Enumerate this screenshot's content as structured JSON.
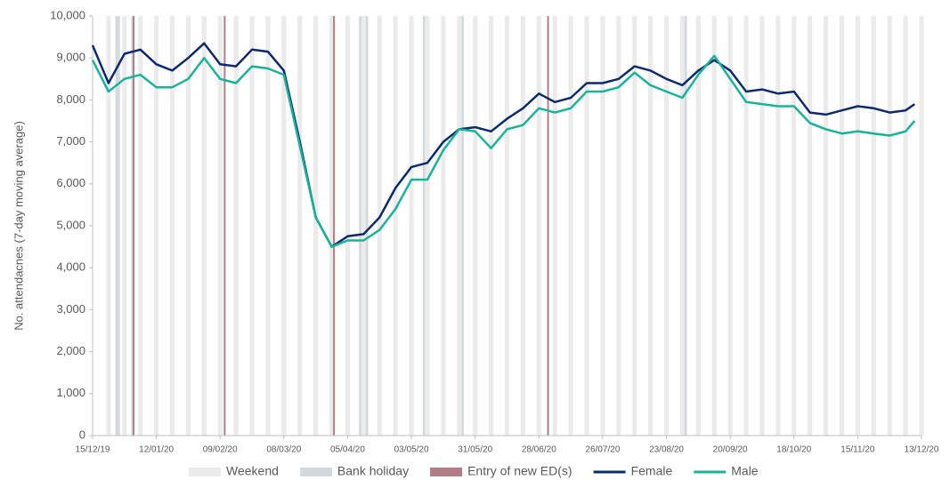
{
  "chart_data": {
    "type": "line",
    "y_label": "No. attendacnes (7-day moving average)",
    "x": [
      "15/12/19",
      "22/12/19",
      "29/12/19",
      "05/01/20",
      "12/01/20",
      "19/01/20",
      "26/01/20",
      "02/02/20",
      "09/02/20",
      "16/02/20",
      "23/02/20",
      "01/03/20",
      "08/03/20",
      "15/03/20",
      "22/03/20",
      "29/03/20",
      "05/04/20",
      "12/04/20",
      "19/04/20",
      "26/04/20",
      "03/05/20",
      "10/05/20",
      "17/05/20",
      "24/05/20",
      "31/05/20",
      "07/06/20",
      "14/06/20",
      "21/06/20",
      "28/06/20",
      "05/07/20",
      "12/07/20",
      "19/07/20",
      "26/07/20",
      "02/08/20",
      "09/08/20",
      "16/08/20",
      "23/08/20",
      "30/08/20",
      "06/09/20",
      "13/09/20",
      "20/09/20",
      "27/09/20",
      "04/10/20",
      "11/10/20",
      "18/10/20",
      "25/10/20",
      "01/11/20",
      "08/11/20",
      "15/11/20",
      "22/11/20",
      "29/11/20",
      "06/12/20",
      "10/12/20"
    ],
    "series": [
      {
        "name": "Female",
        "color": "#0b2a6f",
        "values": [
          9300,
          8400,
          9100,
          9200,
          8850,
          8700,
          9000,
          9350,
          8850,
          8800,
          9200,
          9150,
          8700,
          7000,
          5200,
          4500,
          4750,
          4800,
          5200,
          5900,
          6400,
          6500,
          7000,
          7300,
          7350,
          7250,
          7550,
          7800,
          8150,
          7950,
          8050,
          8400,
          8400,
          8500,
          8800,
          8700,
          8500,
          8350,
          8700,
          8950,
          8700,
          8200,
          8250,
          8150,
          8200,
          7700,
          7650,
          7750,
          7850,
          7800,
          7700,
          7750,
          7900
        ]
      },
      {
        "name": "Male",
        "color": "#17b39a",
        "values": [
          8950,
          8200,
          8500,
          8600,
          8300,
          8300,
          8500,
          9000,
          8500,
          8400,
          8800,
          8750,
          8600,
          6900,
          5200,
          4500,
          4650,
          4650,
          4900,
          5400,
          6100,
          6100,
          6800,
          7300,
          7250,
          6850,
          7300,
          7400,
          7800,
          7700,
          7800,
          8200,
          8200,
          8300,
          8650,
          8350,
          8200,
          8050,
          8600,
          9050,
          8500,
          7950,
          7900,
          7850,
          7850,
          7450,
          7300,
          7200,
          7250,
          7200,
          7150,
          7250,
          7500
        ]
      }
    ],
    "xlim": [
      "15/12/19",
      "13/12/20"
    ],
    "xticks": [
      "15/12/19",
      "12/01/20",
      "09/02/20",
      "08/03/20",
      "05/04/20",
      "03/05/20",
      "31/05/20",
      "28/06/20",
      "26/07/20",
      "23/08/20",
      "20/09/20",
      "18/10/20",
      "15/11/20",
      "13/12/20"
    ],
    "ylim": [
      0,
      10000
    ],
    "yticks": [
      0,
      {
        "value": 1000,
        "label": "1,000"
      },
      {
        "value": 2000,
        "label": "2,000"
      },
      {
        "value": 3000,
        "label": "3,000"
      },
      {
        "value": 4000,
        "label": "4,000"
      },
      {
        "value": 5000,
        "label": "5,000"
      },
      {
        "value": 6000,
        "label": "6,000"
      },
      {
        "value": 7000,
        "label": "7,000"
      },
      {
        "value": 8000,
        "label": "8,000"
      },
      {
        "value": 9000,
        "label": "9,000"
      },
      {
        "value": 10000,
        "label": "10,000"
      }
    ],
    "weekend": {
      "label": "Weekend",
      "color": "#ebebeb"
    },
    "bank_holidays": {
      "label": "Bank holiday",
      "color": "#d3d8de",
      "dates": [
        "25/12/19",
        "26/12/19",
        "01/01/20",
        "10/04/20",
        "13/04/20",
        "08/05/20",
        "25/05/20",
        "31/08/20"
      ]
    },
    "new_ed_entries": {
      "label": "Entry of new ED(s)",
      "color": "#b07e84",
      "dates": [
        "02/01/20",
        "11/02/20",
        "30/03/20",
        "02/07/20"
      ]
    },
    "legend": "bottom"
  }
}
